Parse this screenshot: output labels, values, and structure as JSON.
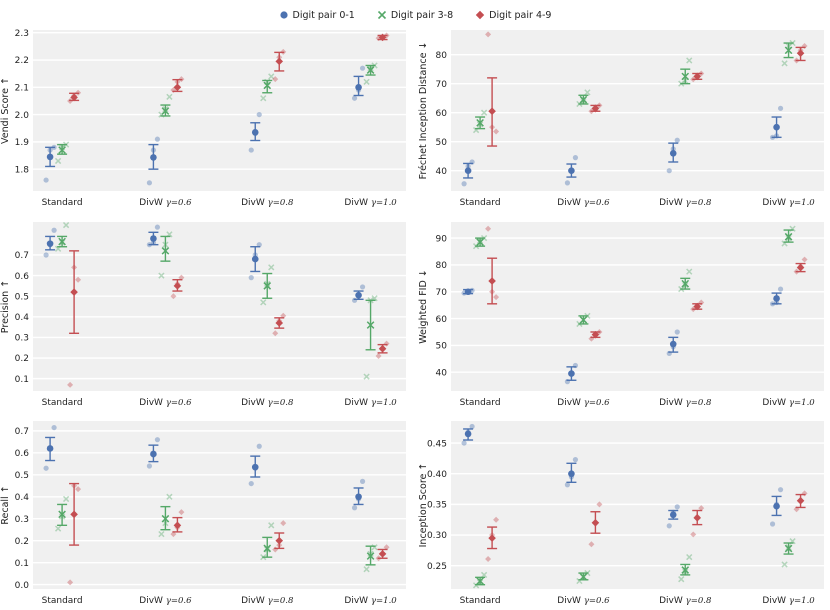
{
  "legend": [
    {
      "label": "Digit pair 0-1",
      "color": "#4C72B0",
      "marker": "circle"
    },
    {
      "label": "Digit pair 3-8",
      "color": "#55A868",
      "marker": "x"
    },
    {
      "label": "Digit pair 4-9",
      "color": "#C44E52",
      "marker": "diamond"
    }
  ],
  "chart_data": [
    {
      "type": "scatter",
      "title": "",
      "ylabel": "Vendi Score",
      "ydir": "↑",
      "categories": [
        "Standard",
        "DivW γ=0.6",
        "DivW γ=0.8",
        "DivW γ=1.0"
      ],
      "yticks": [
        1.8,
        1.9,
        2.0,
        2.1,
        2.2,
        2.3
      ],
      "ylim": [
        1.72,
        2.31
      ],
      "series": [
        {
          "name": "Digit pair 0-1",
          "mean": [
            1.845,
            1.843,
            1.935,
            2.1
          ],
          "lo": [
            1.81,
            1.8,
            1.905,
            2.07
          ],
          "hi": [
            1.88,
            1.89,
            1.97,
            2.14
          ],
          "points": [
            [
              1.76,
              1.88,
              1.87
            ],
            [
              1.75,
              1.91,
              1.87
            ],
            [
              1.87,
              2.0,
              1.93
            ],
            [
              2.06,
              2.17,
              2.09
            ]
          ]
        },
        {
          "name": "Digit pair 3-8",
          "mean": [
            1.87,
            2.013,
            2.107,
            2.163
          ],
          "lo": [
            1.855,
            1.995,
            2.08,
            2.145
          ],
          "hi": [
            1.89,
            2.035,
            2.125,
            2.18
          ],
          "points": [
            [
              1.83,
              1.89,
              1.88
            ],
            [
              2.0,
              2.065,
              2.02
            ],
            [
              2.06,
              2.14,
              2.12
            ],
            [
              2.12,
              2.18,
              2.17
            ]
          ]
        },
        {
          "name": "Digit pair 4-9",
          "mean": [
            2.063,
            2.1,
            2.195,
            2.283
          ],
          "lo": [
            2.052,
            2.085,
            2.16,
            2.275
          ],
          "hi": [
            2.078,
            2.128,
            2.228,
            2.29
          ],
          "points": [
            [
              2.05,
              2.08,
              2.07
            ],
            [
              2.09,
              2.13,
              2.12
            ],
            [
              2.13,
              2.23,
              2.21
            ],
            [
              2.28,
              2.29,
              2.28
            ]
          ]
        }
      ]
    },
    {
      "type": "scatter",
      "title": "",
      "ylabel": "Fréchet Inception Distance",
      "ydir": "↓",
      "categories": [
        "Standard",
        "DivW γ=0.6",
        "DivW γ=0.8",
        "DivW γ=1.0"
      ],
      "yticks": [
        40,
        50,
        60,
        70,
        80
      ],
      "ylim": [
        33,
        88.5
      ],
      "series": [
        {
          "name": "Digit pair 0-1",
          "mean": [
            40,
            40,
            46,
            55
          ],
          "lo": [
            37.5,
            37.8,
            43,
            51.5
          ],
          "hi": [
            42.5,
            42.3,
            49.5,
            58.5
          ],
          "points": [
            [
              35.5,
              43,
              41.5
            ],
            [
              35.8,
              44.5,
              40
            ],
            [
              40,
              50.5,
              47.5
            ],
            [
              51.5,
              61.5,
              52
            ]
          ]
        },
        {
          "name": "Digit pair 3-8",
          "mean": [
            56.5,
            64.5,
            72.5,
            81.5
          ],
          "lo": [
            54.5,
            63,
            70,
            79
          ],
          "hi": [
            58.5,
            66,
            75,
            84
          ],
          "points": [
            [
              54,
              60,
              56
            ],
            [
              63,
              67,
              64
            ],
            [
              70,
              78,
              71
            ],
            [
              77,
              84,
              83
            ]
          ]
        },
        {
          "name": "Digit pair 4-9",
          "mean": [
            60.5,
            61.5,
            72.5,
            80.5
          ],
          "lo": [
            48.5,
            60.5,
            71.5,
            78
          ],
          "hi": [
            72,
            62.5,
            73.5,
            82.5
          ],
          "points": [
            [
              87,
              53.5,
              55
            ],
            [
              60.5,
              62.5,
              61
            ],
            [
              71.5,
              73.5,
              72.5
            ],
            [
              78,
              83,
              81.5
            ]
          ]
        }
      ]
    },
    {
      "type": "scatter",
      "title": "",
      "ylabel": "Precision",
      "ydir": "↑",
      "categories": [
        "Standard",
        "DivW γ=0.6",
        "DivW γ=0.8",
        "DivW γ=1.0"
      ],
      "yticks": [
        0.1,
        0.2,
        0.3,
        0.4,
        0.5,
        0.6,
        0.7
      ],
      "ylim": [
        0.04,
        0.86
      ],
      "series": [
        {
          "name": "Digit pair 0-1",
          "mean": [
            0.755,
            0.78,
            0.68,
            0.505
          ],
          "lo": [
            0.725,
            0.75,
            0.62,
            0.485
          ],
          "hi": [
            0.79,
            0.81,
            0.74,
            0.525
          ],
          "points": [
            [
              0.7,
              0.82,
              0.75
            ],
            [
              0.75,
              0.835,
              0.76
            ],
            [
              0.59,
              0.75,
              0.7
            ],
            [
              0.48,
              0.545,
              0.5
            ]
          ]
        },
        {
          "name": "Digit pair 3-8",
          "mean": [
            0.765,
            0.72,
            0.55,
            0.36
          ],
          "lo": [
            0.74,
            0.67,
            0.49,
            0.24
          ],
          "hi": [
            0.79,
            0.79,
            0.61,
            0.48
          ],
          "points": [
            [
              0.73,
              0.845,
              0.76
            ],
            [
              0.6,
              0.8,
              0.75
            ],
            [
              0.47,
              0.64,
              0.56
            ],
            [
              0.11,
              0.49,
              0.48
            ]
          ]
        },
        {
          "name": "Digit pair 4-9",
          "mean": [
            0.52,
            0.55,
            0.37,
            0.245
          ],
          "lo": [
            0.32,
            0.525,
            0.345,
            0.225
          ],
          "hi": [
            0.72,
            0.58,
            0.395,
            0.265
          ],
          "points": [
            [
              0.07,
              0.58,
              0.64
            ],
            [
              0.5,
              0.59,
              0.56
            ],
            [
              0.32,
              0.405,
              0.38
            ],
            [
              0.21,
              0.27,
              0.25
            ]
          ]
        }
      ]
    },
    {
      "type": "scatter",
      "title": "",
      "ylabel": "Weighted FID",
      "ydir": "↓",
      "categories": [
        "Standard",
        "DivW γ=0.6",
        "DivW γ=0.8",
        "DivW γ=1.0"
      ],
      "yticks": [
        40,
        50,
        60,
        70,
        80,
        90
      ],
      "ylim": [
        33,
        96
      ],
      "series": [
        {
          "name": "Digit pair 0-1",
          "mean": [
            70,
            39.5,
            50.5,
            67.5
          ],
          "lo": [
            69.3,
            37,
            47.5,
            65.5
          ],
          "hi": [
            70.8,
            42,
            53,
            69.5
          ],
          "points": [
            [
              69.5,
              70.5,
              70
            ],
            [
              36.5,
              42.5,
              39.5
            ],
            [
              47,
              55,
              49.5
            ],
            [
              65.5,
              71,
              66
            ]
          ]
        },
        {
          "name": "Digit pair 3-8",
          "mean": [
            88.5,
            59.5,
            73,
            90.5
          ],
          "lo": [
            87,
            58,
            71,
            88.5
          ],
          "hi": [
            90,
            61,
            75,
            93
          ],
          "points": [
            [
              87,
              90,
              89
            ],
            [
              58,
              61,
              59.5
            ],
            [
              71,
              77.5,
              72.5
            ],
            [
              88,
              93.5,
              90
            ]
          ]
        },
        {
          "name": "Digit pair 4-9",
          "mean": [
            74,
            54,
            64.5,
            79
          ],
          "lo": [
            65.5,
            53,
            63.5,
            77.5
          ],
          "hi": [
            82.5,
            55,
            65.5,
            80.5
          ],
          "points": [
            [
              93.5,
              68,
              70
            ],
            [
              52.5,
              55,
              54
            ],
            [
              63.5,
              66,
              64.5
            ],
            [
              77.5,
              82,
              79.5
            ]
          ]
        }
      ]
    },
    {
      "type": "scatter",
      "title": "",
      "ylabel": "Recall",
      "ydir": "↑",
      "categories": [
        "Standard",
        "DivW γ=0.6",
        "DivW γ=0.8",
        "DivW γ=1.0"
      ],
      "yticks": [
        0.0,
        0.1,
        0.2,
        0.3,
        0.4,
        0.5,
        0.6,
        0.7
      ],
      "ylim": [
        -0.02,
        0.745
      ],
      "series": [
        {
          "name": "Digit pair 0-1",
          "mean": [
            0.62,
            0.595,
            0.535,
            0.4
          ],
          "lo": [
            0.565,
            0.56,
            0.49,
            0.365
          ],
          "hi": [
            0.67,
            0.635,
            0.585,
            0.44
          ],
          "points": [
            [
              0.53,
              0.715,
              0.62
            ],
            [
              0.54,
              0.66,
              0.59
            ],
            [
              0.46,
              0.63,
              0.53
            ],
            [
              0.35,
              0.47,
              0.39
            ]
          ]
        },
        {
          "name": "Digit pair 3-8",
          "mean": [
            0.32,
            0.3,
            0.165,
            0.13
          ],
          "lo": [
            0.27,
            0.25,
            0.125,
            0.09
          ],
          "hi": [
            0.365,
            0.355,
            0.215,
            0.175
          ],
          "points": [
            [
              0.255,
              0.39,
              0.31
            ],
            [
              0.23,
              0.4,
              0.28
            ],
            [
              0.125,
              0.27,
              0.16
            ],
            [
              0.07,
              0.17,
              0.14
            ]
          ]
        },
        {
          "name": "Digit pair 4-9",
          "mean": [
            0.32,
            0.27,
            0.2,
            0.14
          ],
          "lo": [
            0.18,
            0.24,
            0.165,
            0.12
          ],
          "hi": [
            0.46,
            0.305,
            0.235,
            0.16
          ],
          "points": [
            [
              0.01,
              0.435,
              0.45
            ],
            [
              0.23,
              0.33,
              0.26
            ],
            [
              0.16,
              0.28,
              0.18
            ],
            [
              0.12,
              0.17,
              0.14
            ]
          ]
        }
      ]
    },
    {
      "type": "scatter",
      "title": "",
      "ylabel": "Inception Score",
      "ydir": "↑",
      "categories": [
        "Standard",
        "DivW γ=0.6",
        "DivW γ=0.8",
        "DivW γ=1.0"
      ],
      "yticks": [
        0.25,
        0.3,
        0.35,
        0.4,
        0.45
      ],
      "ylim": [
        0.212,
        0.486
      ],
      "series": [
        {
          "name": "Digit pair 0-1",
          "mean": [
            0.465,
            0.4,
            0.333,
            0.347
          ],
          "lo": [
            0.455,
            0.386,
            0.326,
            0.332
          ],
          "hi": [
            0.473,
            0.417,
            0.34,
            0.363
          ],
          "points": [
            [
              0.45,
              0.477,
              0.468
            ],
            [
              0.382,
              0.423,
              0.395
            ],
            [
              0.315,
              0.346,
              0.337
            ],
            [
              0.318,
              0.374,
              0.35
            ]
          ]
        },
        {
          "name": "Digit pair 3-8",
          "mean": [
            0.225,
            0.232,
            0.243,
            0.278
          ],
          "lo": [
            0.219,
            0.227,
            0.235,
            0.269
          ],
          "hi": [
            0.231,
            0.238,
            0.252,
            0.287
          ],
          "points": [
            [
              0.218,
              0.235,
              0.223
            ],
            [
              0.225,
              0.238,
              0.231
            ],
            [
              0.228,
              0.264,
              0.24
            ],
            [
              0.252,
              0.29,
              0.28
            ]
          ]
        },
        {
          "name": "Digit pair 4-9",
          "mean": [
            0.295,
            0.32,
            0.328,
            0.356
          ],
          "lo": [
            0.278,
            0.303,
            0.317,
            0.345
          ],
          "hi": [
            0.313,
            0.338,
            0.34,
            0.366
          ],
          "points": [
            [
              0.261,
              0.325,
              0.3
            ],
            [
              0.285,
              0.35,
              0.32
            ],
            [
              0.301,
              0.344,
              0.33
            ],
            [
              0.342,
              0.368,
              0.355
            ]
          ]
        }
      ]
    }
  ]
}
